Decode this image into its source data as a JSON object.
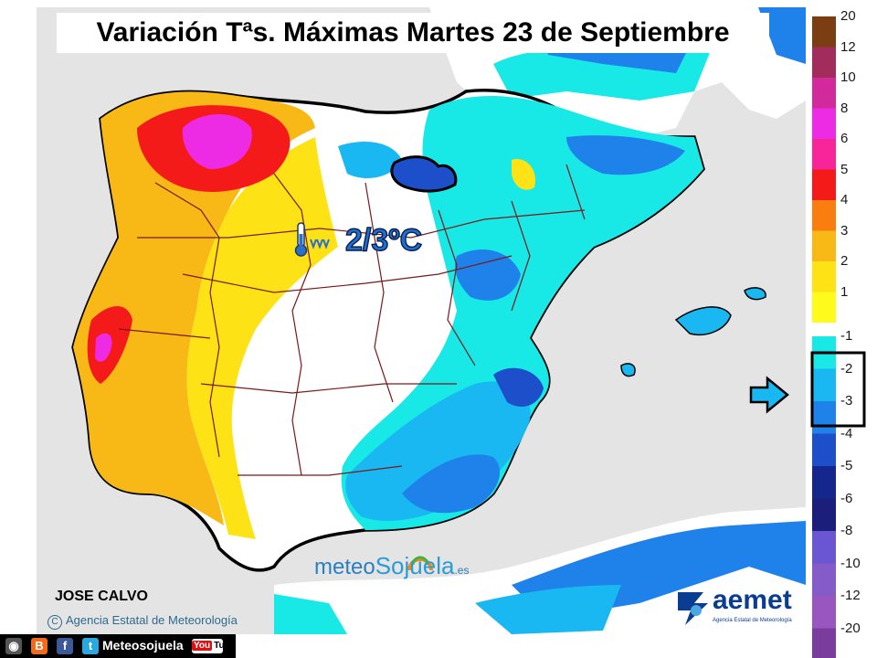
{
  "title": "Variación Tªs. Máximas Martes 23 de Septiembre",
  "callout": {
    "value": "2/3ºC",
    "icon": "thermometer-down-icon"
  },
  "author": "JOSE CALVO",
  "copyright": "Agencia Estatal de Meteorología",
  "brand": {
    "part1": "meteo",
    "part2": "Sojuela",
    "part3": ".es"
  },
  "aemet": {
    "name": "aemet",
    "sub": "Agencia Estatal de Meteorología"
  },
  "social": {
    "label": "Meteosojuela",
    "youtube": "You",
    "youtube_tube": "Tube"
  },
  "legend": {
    "positive": [
      {
        "label": "20",
        "color": "#7a3e12"
      },
      {
        "label": "12",
        "color": "#a22d5c"
      },
      {
        "label": "10",
        "color": "#d22a9c"
      },
      {
        "label": "8",
        "color": "#ee2be4"
      },
      {
        "label": "6",
        "color": "#f7249a"
      },
      {
        "label": "5",
        "color": "#f51a1a"
      },
      {
        "label": "4",
        "color": "#fa7d0f"
      },
      {
        "label": "3",
        "color": "#f8b816"
      },
      {
        "label": "2",
        "color": "#fde316"
      },
      {
        "label": "1",
        "color": "#fdfa1c"
      }
    ],
    "negative": [
      {
        "label": "-1",
        "color": "#18e8e6"
      },
      {
        "label": "-2",
        "color": "#19b8f2"
      },
      {
        "label": "-3",
        "color": "#1f82ea"
      },
      {
        "label": "-4",
        "color": "#1c4fc9"
      },
      {
        "label": "-5",
        "color": "#15278e"
      },
      {
        "label": "-6",
        "color": "#1b1f7b"
      },
      {
        "label": "-8",
        "color": "#6a55d3"
      },
      {
        "label": "-10",
        "color": "#855bc9"
      },
      {
        "label": "-12",
        "color": "#9955c0"
      },
      {
        "label": "-20",
        "color": "#7a3d9e"
      }
    ],
    "highlighted_range": [
      "-2",
      "-3"
    ]
  },
  "colors": {
    "sea": "#e4e4e4",
    "land_neutral": "#ffffff",
    "orange": "#f8b816",
    "yellow": "#fde316",
    "cyan": "#18e8e6",
    "light_blue": "#19b8f2",
    "mid_blue": "#1f82ea",
    "dark_blue": "#1c4fc9",
    "red": "#f51a1a",
    "magenta": "#ee2be4",
    "border_brown": "#7a1a1a"
  }
}
